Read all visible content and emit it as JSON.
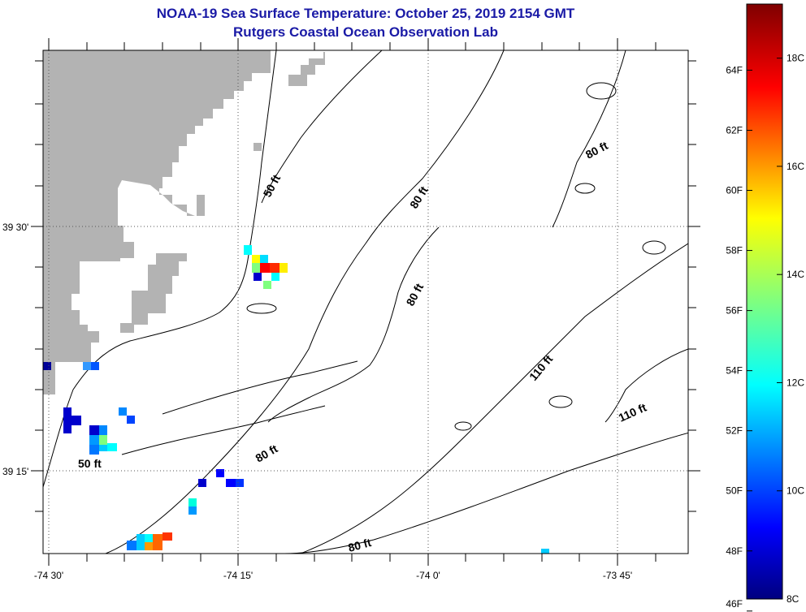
{
  "title": {
    "line1": "NOAA-19 Sea Surface Temperature:  October 25, 2019 2154 GMT",
    "line2": "Rutgers Coastal Ocean Observation Lab"
  },
  "map": {
    "lon_ticks": [
      {
        "label": "-74 30'"
      },
      {
        "label": "-74 15'"
      },
      {
        "label": "-74 0'"
      },
      {
        "label": "-73 45'"
      }
    ],
    "lat_ticks": [
      {
        "label": "39 30'"
      },
      {
        "label": "39 15'"
      }
    ],
    "contour_labels": [
      {
        "text": "50 ft"
      },
      {
        "text": "50 ft"
      },
      {
        "text": "80 ft"
      },
      {
        "text": "80 ft"
      },
      {
        "text": "80 ft"
      },
      {
        "text": "80 ft"
      },
      {
        "text": "80 ft"
      },
      {
        "text": "110 ft"
      },
      {
        "text": "110 ft"
      }
    ],
    "land_color": "#b3b3b3"
  },
  "colorbar": {
    "min_c": 8,
    "max_c": 19,
    "fahrenheit_labels": [
      "64F",
      "62F",
      "60F",
      "58F",
      "56F",
      "54F",
      "52F",
      "50F",
      "48F",
      "46F"
    ],
    "celsius_labels": [
      "18C",
      "16C",
      "14C",
      "12C",
      "10C",
      "8C"
    ]
  }
}
